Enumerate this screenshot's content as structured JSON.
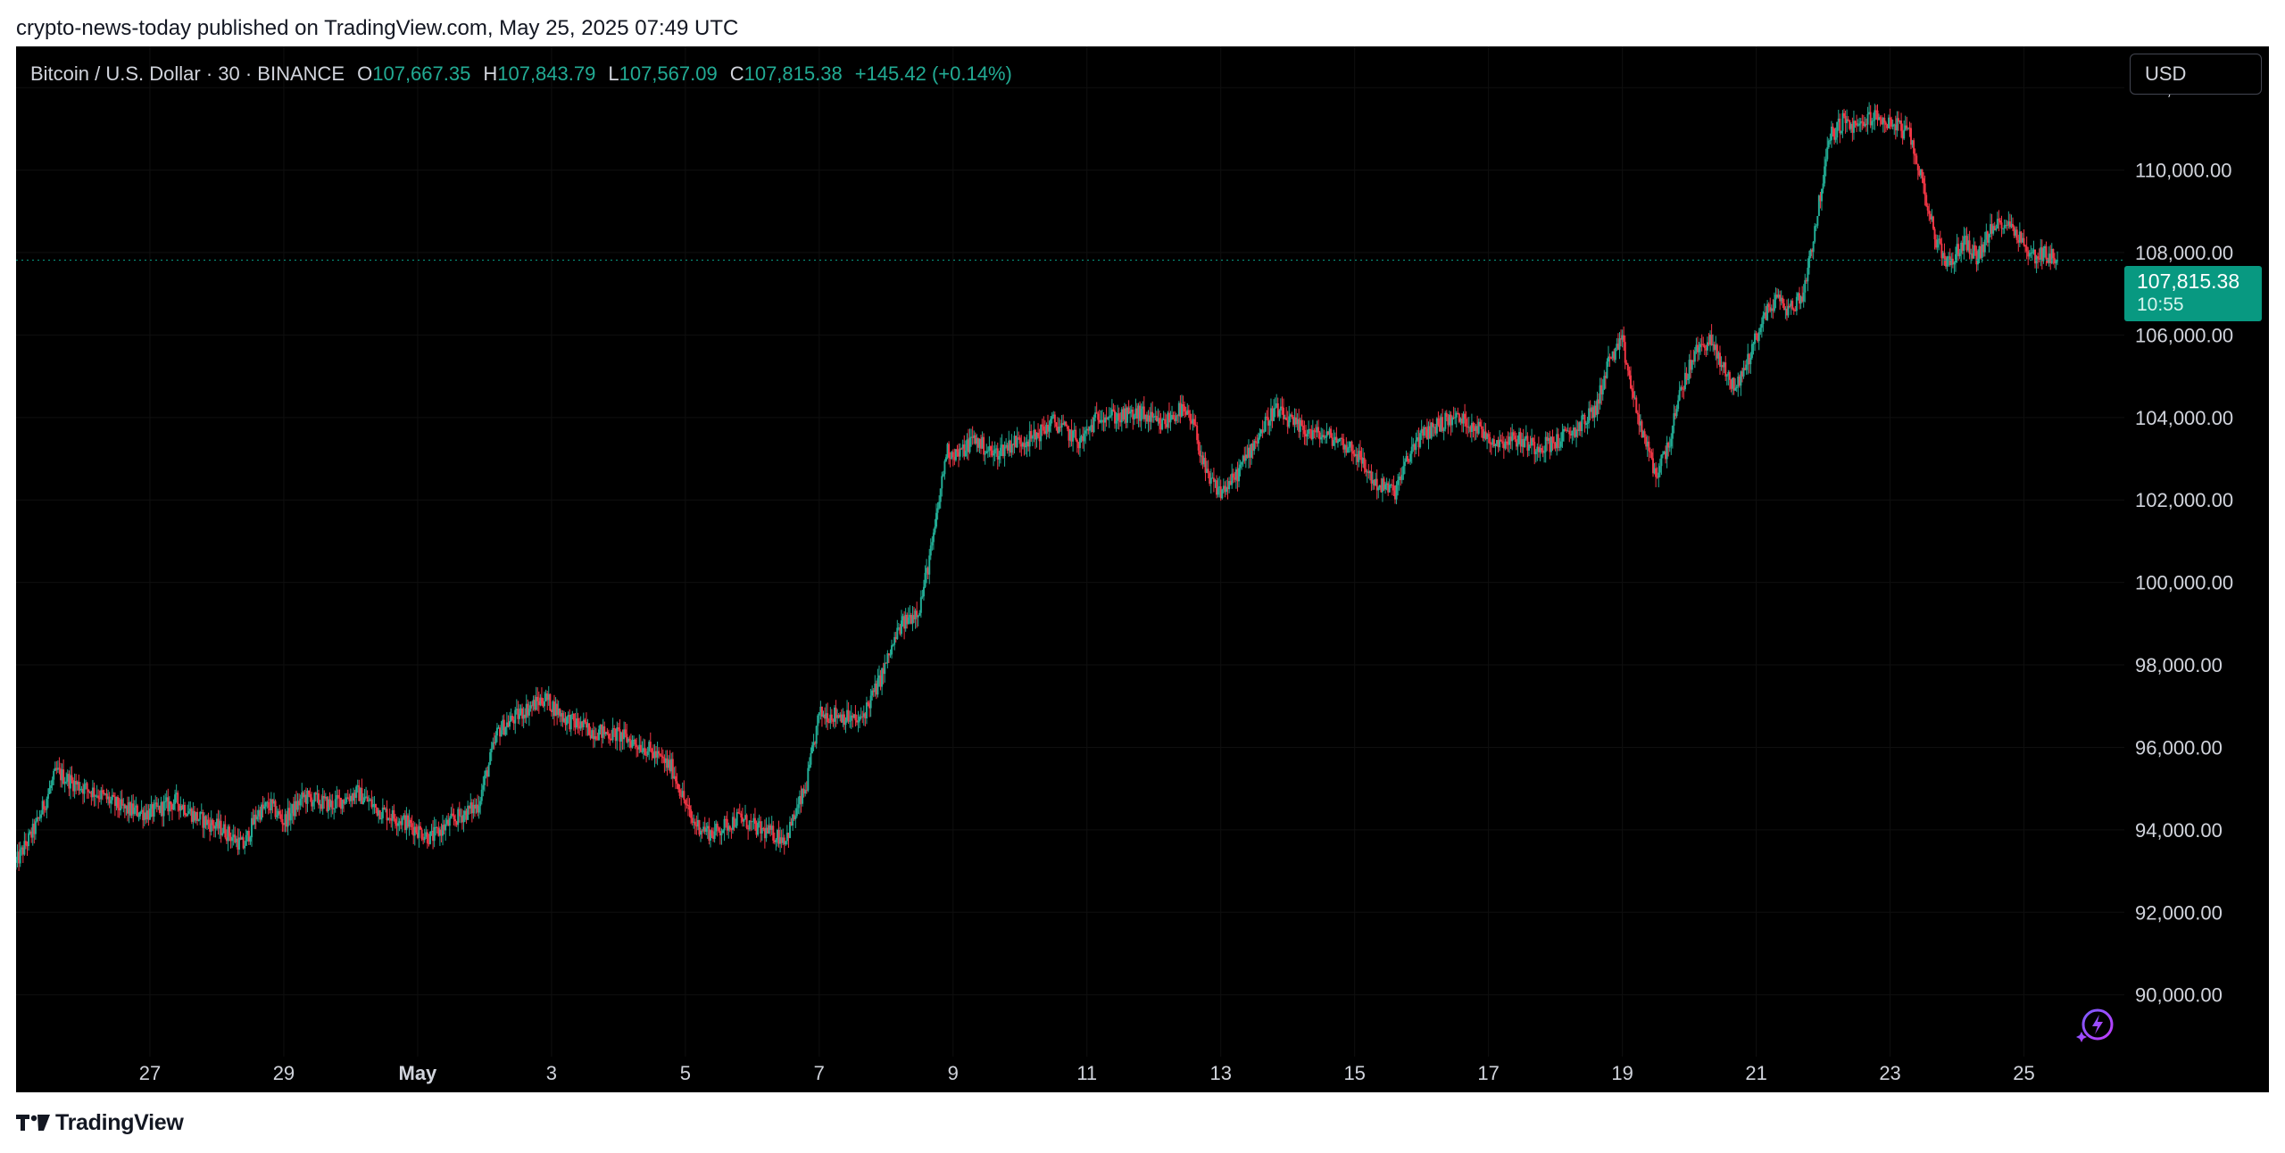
{
  "publish_line": "crypto-news-today published on TradingView.com, May 25, 2025 07:49 UTC",
  "legend": {
    "symbol": "Bitcoin / U.S. Dollar · 30 · BINANCE",
    "o_label": "O",
    "o_value": "107,667.35",
    "h_label": "H",
    "h_value": "107,843.79",
    "l_label": "L",
    "l_value": "107,567.09",
    "c_label": "C",
    "c_value": "107,815.38",
    "change": "+145.42 (+0.14%)"
  },
  "currency": "USD",
  "last_price": {
    "price": "107,815.38",
    "countdown": "10:55"
  },
  "footer": {
    "brand": "TradingView",
    "logo_icon": "tradingview-logo-icon"
  },
  "colors": {
    "up": "#22ab94",
    "down": "#f23645",
    "tag": "#089981",
    "background": "#000000"
  },
  "chart_data": {
    "type": "candlestick",
    "timeframe": "30",
    "yticks": [
      90000,
      92000,
      94000,
      96000,
      98000,
      100000,
      102000,
      104000,
      106000,
      108000,
      110000,
      112000
    ],
    "ytick_labels": [
      "90,000.00",
      "92,000.00",
      "94,000.00",
      "96,000.00",
      "98,000.00",
      "100,000.00",
      "102,000.00",
      "104,000.00",
      "106,000.00",
      "108,000.00",
      "110,000.00",
      "112,000.00"
    ],
    "ylim": [
      88500,
      113000
    ],
    "xlim": [
      25.0,
      56.5
    ],
    "xticks": [
      {
        "x": 27,
        "label": "27"
      },
      {
        "x": 29,
        "label": "29"
      },
      {
        "x": 31,
        "label": "May",
        "bold": true
      },
      {
        "x": 33,
        "label": "3"
      },
      {
        "x": 35,
        "label": "5"
      },
      {
        "x": 37,
        "label": "7"
      },
      {
        "x": 39,
        "label": "9"
      },
      {
        "x": 41,
        "label": "11"
      },
      {
        "x": 43,
        "label": "13"
      },
      {
        "x": 45,
        "label": "15"
      },
      {
        "x": 47,
        "label": "17"
      },
      {
        "x": 49,
        "label": "19"
      },
      {
        "x": 51,
        "label": "21"
      },
      {
        "x": 53,
        "label": "23"
      },
      {
        "x": 55,
        "label": "25"
      }
    ],
    "last_price": 107815.38,
    "price_path": [
      [
        25.0,
        93200
      ],
      [
        25.3,
        94100
      ],
      [
        25.6,
        95400
      ],
      [
        25.9,
        95100
      ],
      [
        26.2,
        94900
      ],
      [
        26.6,
        94500
      ],
      [
        27.0,
        94400
      ],
      [
        27.4,
        94700
      ],
      [
        27.7,
        94300
      ],
      [
        28.1,
        94000
      ],
      [
        28.4,
        93600
      ],
      [
        28.6,
        94400
      ],
      [
        28.8,
        94600
      ],
      [
        29.0,
        94200
      ],
      [
        29.3,
        94800
      ],
      [
        29.7,
        94600
      ],
      [
        30.1,
        94900
      ],
      [
        30.4,
        94500
      ],
      [
        30.8,
        94200
      ],
      [
        31.2,
        93800
      ],
      [
        31.5,
        94200
      ],
      [
        31.9,
        94600
      ],
      [
        32.2,
        96400
      ],
      [
        32.6,
        96900
      ],
      [
        32.9,
        97200
      ],
      [
        33.2,
        96700
      ],
      [
        33.6,
        96400
      ],
      [
        34.0,
        96300
      ],
      [
        34.4,
        96000
      ],
      [
        34.8,
        95500
      ],
      [
        35.1,
        94200
      ],
      [
        35.4,
        93900
      ],
      [
        35.8,
        94300
      ],
      [
        36.1,
        94000
      ],
      [
        36.5,
        93800
      ],
      [
        36.8,
        95000
      ],
      [
        37.0,
        96800
      ],
      [
        37.3,
        96800
      ],
      [
        37.6,
        96600
      ],
      [
        37.9,
        97600
      ],
      [
        38.2,
        98900
      ],
      [
        38.5,
        99400
      ],
      [
        38.7,
        101000
      ],
      [
        38.9,
        103200
      ],
      [
        39.1,
        103100
      ],
      [
        39.3,
        103500
      ],
      [
        39.6,
        103100
      ],
      [
        39.9,
        103400
      ],
      [
        40.2,
        103500
      ],
      [
        40.5,
        103900
      ],
      [
        40.9,
        103400
      ],
      [
        41.2,
        104100
      ],
      [
        41.5,
        104000
      ],
      [
        41.8,
        104100
      ],
      [
        42.1,
        103800
      ],
      [
        42.4,
        104200
      ],
      [
        42.6,
        103800
      ],
      [
        42.8,
        102500
      ],
      [
        43.0,
        102200
      ],
      [
        43.2,
        102500
      ],
      [
        43.5,
        103400
      ],
      [
        43.8,
        104200
      ],
      [
        44.1,
        103800
      ],
      [
        44.4,
        103600
      ],
      [
        44.7,
        103500
      ],
      [
        45.0,
        103200
      ],
      [
        45.3,
        102400
      ],
      [
        45.6,
        102200
      ],
      [
        45.9,
        103400
      ],
      [
        46.2,
        103800
      ],
      [
        46.5,
        104000
      ],
      [
        46.8,
        103800
      ],
      [
        47.1,
        103400
      ],
      [
        47.4,
        103500
      ],
      [
        47.7,
        103300
      ],
      [
        48.0,
        103400
      ],
      [
        48.3,
        103700
      ],
      [
        48.6,
        104200
      ],
      [
        48.8,
        105400
      ],
      [
        49.0,
        105800
      ],
      [
        49.2,
        104200
      ],
      [
        49.4,
        103100
      ],
      [
        49.5,
        102600
      ],
      [
        49.7,
        103400
      ],
      [
        49.9,
        104800
      ],
      [
        50.1,
        105600
      ],
      [
        50.3,
        105900
      ],
      [
        50.5,
        105200
      ],
      [
        50.7,
        104700
      ],
      [
        50.9,
        105500
      ],
      [
        51.1,
        106400
      ],
      [
        51.3,
        106900
      ],
      [
        51.5,
        106600
      ],
      [
        51.7,
        107000
      ],
      [
        51.9,
        108800
      ],
      [
        52.1,
        110800
      ],
      [
        52.3,
        111200
      ],
      [
        52.5,
        111000
      ],
      [
        52.7,
        111300
      ],
      [
        52.9,
        111200
      ],
      [
        53.1,
        111100
      ],
      [
        53.3,
        110800
      ],
      [
        53.5,
        109600
      ],
      [
        53.7,
        108200
      ],
      [
        53.9,
        107700
      ],
      [
        54.1,
        108300
      ],
      [
        54.3,
        107900
      ],
      [
        54.5,
        108500
      ],
      [
        54.7,
        108800
      ],
      [
        54.9,
        108500
      ],
      [
        55.1,
        107900
      ],
      [
        55.3,
        108000
      ],
      [
        55.5,
        107815
      ]
    ]
  }
}
